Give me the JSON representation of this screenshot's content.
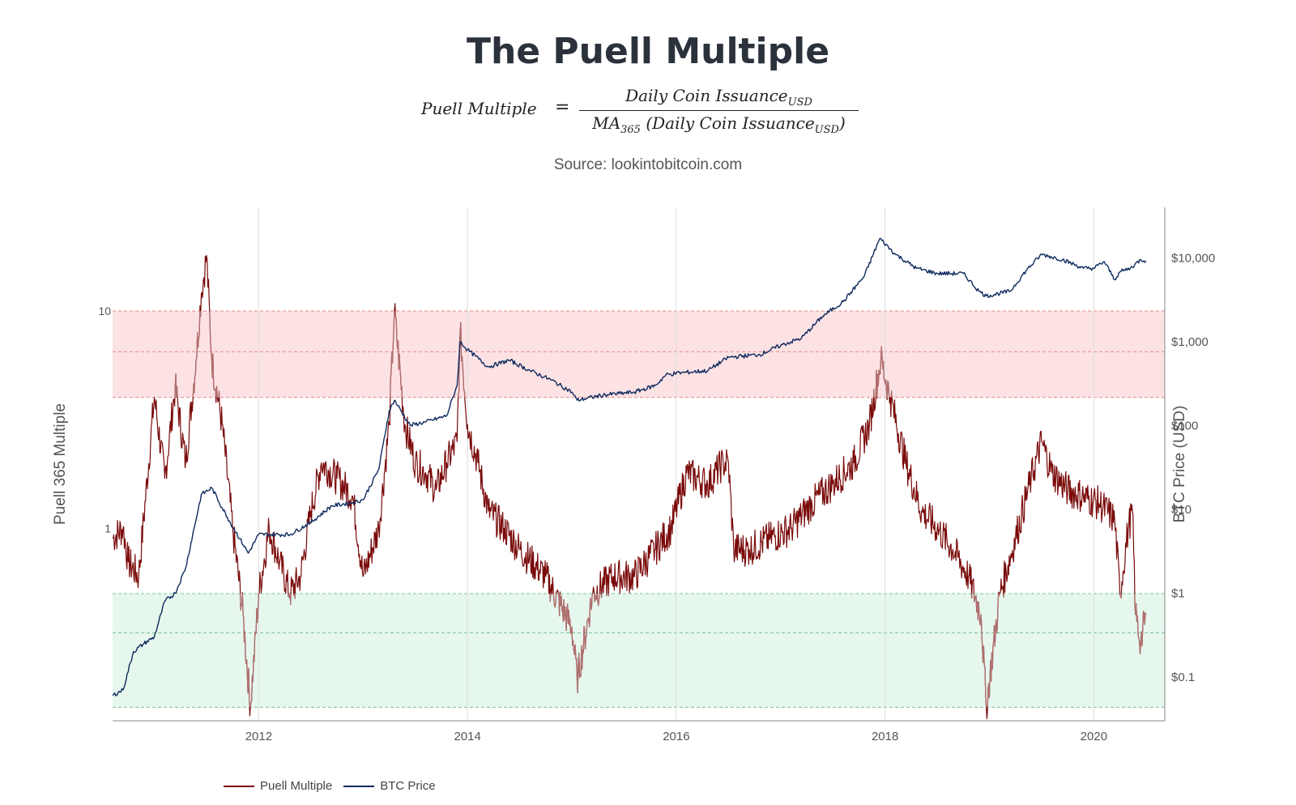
{
  "title": "The Puell Multiple",
  "formula": {
    "lhs": "Puell Multiple",
    "eq": "=",
    "numerator": "Daily Coin Issuance",
    "numerator_sub": "USD",
    "denominator_pre": "MA",
    "denominator_pre_sub": "365",
    "denominator_mid": " (Daily Coin Issuance",
    "denominator_sub": "USD",
    "denominator_post": ")"
  },
  "source": "Source: lookintobitcoin.com",
  "colors": {
    "puell": "#7a0a0a",
    "puell_faded": "#b07070",
    "btc": "#0e2a5e",
    "red_band": "#fde2e4",
    "green_band": "#e6f7ee",
    "red_dash": "#e08a8a",
    "green_dash": "#79c48f",
    "grid": "#dddddd",
    "axis_text": "#555555"
  },
  "chart_data": {
    "type": "line",
    "x_ticks": [
      "2012",
      "2014",
      "2016",
      "2018",
      "2020"
    ],
    "x_range": [
      2010.6,
      2020.68
    ],
    "y_left": {
      "label": "Puell 365 Multiple",
      "scale": "log",
      "ticks": [
        "10",
        "1"
      ],
      "ylim": [
        0.13,
        30
      ]
    },
    "y_right": {
      "label": "BTC Price (USD)",
      "scale": "log",
      "ticks": [
        "$10,000",
        "$1,000",
        "$100",
        "$10",
        "$1",
        "$0.1"
      ],
      "ylim": [
        0.03,
        40000
      ]
    },
    "bands": [
      {
        "name": "red",
        "from": 4,
        "to": 10,
        "mid": 6.5
      },
      {
        "name": "green",
        "from": 0.15,
        "to": 0.5,
        "mid": 0.33
      }
    ],
    "legend": [
      "Puell Multiple",
      "BTC Price"
    ],
    "legend_position": "bottom-left",
    "series": [
      {
        "name": "Puell Multiple",
        "axis": "left",
        "x": [
          2010.6,
          2010.7,
          2010.75,
          2010.85,
          2011.0,
          2011.1,
          2011.2,
          2011.3,
          2011.4,
          2011.45,
          2011.5,
          2011.55,
          2011.65,
          2011.75,
          2011.85,
          2011.92,
          2012.0,
          2012.1,
          2012.2,
          2012.3,
          2012.4,
          2012.5,
          2012.6,
          2012.75,
          2012.9,
          2013.0,
          2013.15,
          2013.25,
          2013.3,
          2013.4,
          2013.5,
          2013.6,
          2013.7,
          2013.8,
          2013.9,
          2013.93,
          2014.0,
          2014.1,
          2014.2,
          2014.35,
          2014.5,
          2014.75,
          2015.0,
          2015.05,
          2015.2,
          2015.4,
          2015.6,
          2015.8,
          2015.95,
          2016.1,
          2016.3,
          2016.45,
          2016.5,
          2016.55,
          2016.7,
          2016.9,
          2017.1,
          2017.3,
          2017.5,
          2017.7,
          2017.85,
          2017.96,
          2018.05,
          2018.2,
          2018.35,
          2018.5,
          2018.65,
          2018.8,
          2018.92,
          2018.97,
          2019.1,
          2019.25,
          2019.4,
          2019.5,
          2019.6,
          2019.75,
          2019.9,
          2020.05,
          2020.2,
          2020.25,
          2020.33,
          2020.37,
          2020.4,
          2020.45,
          2020.5
        ],
        "values": [
          0.9,
          1.0,
          0.7,
          0.6,
          4.0,
          1.7,
          4.5,
          2.0,
          6.0,
          12.0,
          18.0,
          6.0,
          3.0,
          1.0,
          0.4,
          0.15,
          0.5,
          1.0,
          0.7,
          0.5,
          0.6,
          1.2,
          2.0,
          1.7,
          1.4,
          0.6,
          1.0,
          3.0,
          10.0,
          3.0,
          2.0,
          1.8,
          1.5,
          2.0,
          2.5,
          8.0,
          3.0,
          2.0,
          1.2,
          1.0,
          0.8,
          0.6,
          0.35,
          0.2,
          0.5,
          0.6,
          0.6,
          0.8,
          1.0,
          1.8,
          1.6,
          2.0,
          2.0,
          0.8,
          0.8,
          0.9,
          1.0,
          1.3,
          1.6,
          2.0,
          3.0,
          6.0,
          4.0,
          2.0,
          1.2,
          1.0,
          0.8,
          0.6,
          0.4,
          0.15,
          0.5,
          0.9,
          1.7,
          2.5,
          1.8,
          1.5,
          1.4,
          1.3,
          1.1,
          0.5,
          1.0,
          1.2,
          0.4,
          0.3,
          0.4
        ]
      },
      {
        "name": "BTC Price",
        "axis": "right",
        "x": [
          2010.6,
          2010.7,
          2010.8,
          2010.9,
          2011.0,
          2011.1,
          2011.2,
          2011.3,
          2011.45,
          2011.55,
          2011.7,
          2011.9,
          2012.0,
          2012.1,
          2012.3,
          2012.5,
          2012.7,
          2012.9,
          2013.0,
          2013.15,
          2013.25,
          2013.3,
          2013.45,
          2013.6,
          2013.8,
          2013.9,
          2013.93,
          2014.0,
          2014.2,
          2014.4,
          2014.6,
          2014.8,
          2015.0,
          2015.05,
          2015.3,
          2015.6,
          2015.8,
          2015.9,
          2016.0,
          2016.3,
          2016.5,
          2016.8,
          2017.0,
          2017.2,
          2017.4,
          2017.6,
          2017.8,
          2017.95,
          2018.1,
          2018.3,
          2018.5,
          2018.75,
          2018.9,
          2018.97,
          2019.2,
          2019.35,
          2019.5,
          2019.7,
          2019.9,
          2020.0,
          2020.1,
          2020.2,
          2020.25,
          2020.35,
          2020.45,
          2020.5
        ],
        "values": [
          0.06,
          0.07,
          0.2,
          0.25,
          0.3,
          0.8,
          1.0,
          2.0,
          15.0,
          18.0,
          8.0,
          3.0,
          5.0,
          5.0,
          5.0,
          7.0,
          11.0,
          12.0,
          13.0,
          30.0,
          150.0,
          200.0,
          100.0,
          110.0,
          130.0,
          300.0,
          1000.0,
          800.0,
          500.0,
          600.0,
          450.0,
          350.0,
          250.0,
          200.0,
          230.0,
          250.0,
          300.0,
          400.0,
          420.0,
          450.0,
          650.0,
          700.0,
          900.0,
          1100.0,
          2000.0,
          3000.0,
          6000.0,
          17000.0,
          11000.0,
          7500.0,
          6500.0,
          6500.0,
          4000.0,
          3500.0,
          4000.0,
          7000.0,
          11000.0,
          9500.0,
          7500.0,
          7500.0,
          9000.0,
          5500.0,
          6800.0,
          7500.0,
          9500.0,
          9200.0
        ]
      }
    ]
  }
}
